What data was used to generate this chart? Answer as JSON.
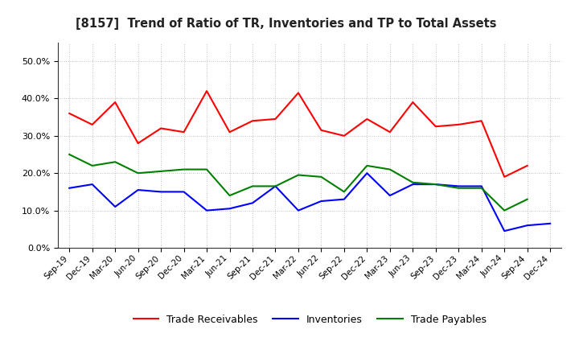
{
  "title": "[8157]  Trend of Ratio of TR, Inventories and TP to Total Assets",
  "x_labels": [
    "Sep-19",
    "Dec-19",
    "Mar-20",
    "Jun-20",
    "Sep-20",
    "Dec-20",
    "Mar-21",
    "Jun-21",
    "Sep-21",
    "Dec-21",
    "Mar-22",
    "Jun-22",
    "Sep-22",
    "Dec-22",
    "Mar-23",
    "Jun-23",
    "Sep-23",
    "Dec-23",
    "Mar-24",
    "Jun-24",
    "Sep-24",
    "Dec-24"
  ],
  "trade_receivables": [
    0.36,
    0.33,
    0.39,
    0.28,
    0.32,
    0.31,
    0.42,
    0.31,
    0.34,
    0.345,
    0.415,
    0.315,
    0.3,
    0.345,
    0.31,
    0.39,
    0.325,
    0.33,
    0.34,
    0.19,
    0.22,
    null
  ],
  "inventories": [
    0.16,
    0.17,
    0.11,
    0.155,
    0.15,
    0.15,
    0.1,
    0.105,
    0.12,
    0.165,
    0.1,
    0.125,
    0.13,
    0.2,
    0.14,
    0.17,
    0.17,
    0.165,
    0.165,
    0.045,
    0.06,
    0.065
  ],
  "trade_payables": [
    0.25,
    0.22,
    0.23,
    0.2,
    0.205,
    0.21,
    0.21,
    0.14,
    0.165,
    0.165,
    0.195,
    0.19,
    0.15,
    0.22,
    0.21,
    0.175,
    0.17,
    0.16,
    0.16,
    0.1,
    0.13,
    null
  ],
  "ylim": [
    0.0,
    0.55
  ],
  "yticks": [
    0.0,
    0.1,
    0.2,
    0.3,
    0.4,
    0.5
  ],
  "color_tr": "#ff0000",
  "color_inv": "#0000ff",
  "color_tp": "#008000",
  "bg_color": "#ffffff",
  "grid_color": "#aaaaaa",
  "legend_labels": [
    "Trade Receivables",
    "Inventories",
    "Trade Payables"
  ]
}
